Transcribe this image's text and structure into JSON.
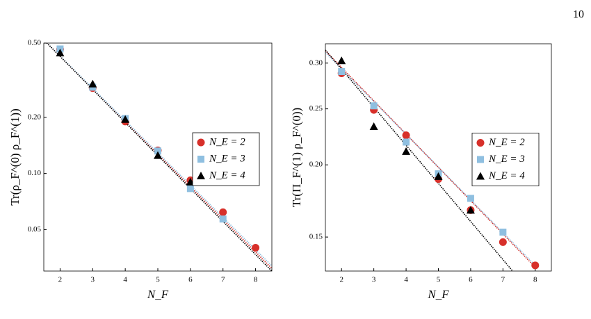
{
  "page_number": "10",
  "chart_data": [
    {
      "type": "scatter",
      "xlabel": "N_F",
      "ylabel": "Tr(ρ_F^(0) ρ_F^(1))",
      "xlim": [
        1.5,
        8.5
      ],
      "ylim": [
        0.03,
        0.5
      ],
      "ylog": true,
      "xticks": [
        2,
        3,
        4,
        5,
        6,
        7,
        8
      ],
      "yticks": [
        0.05,
        {
          "value": 0.1,
          "label": "0.10"
        },
        {
          "value": 0.2,
          "label": "0.20"
        },
        {
          "value": 0.5,
          "label": "0.50"
        }
      ],
      "legend": "right",
      "series": [
        {
          "name": "N_E = 2",
          "color": "#d7302a",
          "marker": "circle",
          "x": [
            2,
            3,
            4,
            5,
            6,
            7,
            8
          ],
          "values": [
            0.463,
            0.287,
            0.19,
            0.133,
            0.092,
            0.062,
            0.04
          ]
        },
        {
          "name": "N_E = 3",
          "color": "#8fbfe0",
          "marker": "square",
          "x": [
            2,
            3,
            4,
            5,
            6,
            7
          ],
          "values": [
            0.465,
            0.29,
            0.197,
            0.132,
            0.083,
            0.057
          ]
        },
        {
          "name": "N_E = 4",
          "color": "#000000",
          "marker": "triangle",
          "x": [
            2,
            3,
            4,
            5,
            6
          ],
          "values": [
            0.443,
            0.302,
            0.195,
            0.125,
            0.09
          ]
        }
      ],
      "fits": [
        {
          "color": "#d7302a",
          "x": [
            1.5,
            8.5
          ],
          "values": [
            0.52,
            0.031
          ]
        },
        {
          "color": "#8fbfe0",
          "x": [
            1.5,
            8.5
          ],
          "values": [
            0.52,
            0.032
          ]
        },
        {
          "color": "#000000",
          "x": [
            1.5,
            8.5
          ],
          "values": [
            0.52,
            0.03
          ]
        }
      ]
    },
    {
      "type": "scatter",
      "xlabel": "N_F",
      "ylabel": "Tr(Π_F^(1) ρ_F^(0))",
      "xlim": [
        1.5,
        8.5
      ],
      "ylim": [
        0.131,
        0.324
      ],
      "ylog": true,
      "xticks": [
        2,
        3,
        4,
        5,
        6,
        7,
        8
      ],
      "yticks": [
        0.15,
        {
          "value": 0.2,
          "label": "0.20"
        },
        0.25,
        {
          "value": 0.3,
          "label": "0.30"
        }
      ],
      "legend": "right",
      "series": [
        {
          "name": "N_E = 2",
          "color": "#d7302a",
          "marker": "circle",
          "x": [
            2,
            3,
            4,
            5,
            6,
            7,
            8
          ],
          "values": [
            0.288,
            0.249,
            0.225,
            0.189,
            0.167,
            0.147,
            0.134
          ]
        },
        {
          "name": "N_E = 3",
          "color": "#8fbfe0",
          "marker": "square",
          "x": [
            2,
            3,
            4,
            5,
            6,
            7
          ],
          "values": [
            0.29,
            0.253,
            0.219,
            0.193,
            0.175,
            0.153
          ]
        },
        {
          "name": "N_E = 4",
          "color": "#000000",
          "marker": "triangle",
          "x": [
            2,
            3,
            4,
            5,
            6
          ],
          "values": [
            0.303,
            0.233,
            0.211,
            0.191,
            0.167
          ]
        }
      ],
      "fits": [
        {
          "color": "#d7302a",
          "x": [
            1.5,
            8
          ],
          "values": [
            0.315,
            0.133
          ]
        },
        {
          "color": "#8fbfe0",
          "x": [
            1.5,
            8
          ],
          "values": [
            0.313,
            0.134
          ]
        },
        {
          "color": "#000000",
          "x": [
            1.5,
            7.3
          ],
          "values": [
            0.316,
            0.131
          ]
        }
      ]
    }
  ]
}
